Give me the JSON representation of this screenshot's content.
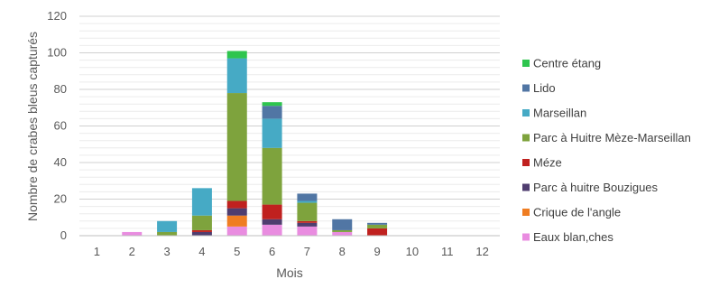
{
  "chart_data": {
    "type": "bar",
    "stacked": true,
    "xlabel": "Mois",
    "ylabel": "Nombre de crabes bleus capturés",
    "ylim": [
      0,
      120
    ],
    "y_ticks": [
      0,
      20,
      40,
      60,
      80,
      100,
      120
    ],
    "grid": true,
    "legend_position": "right",
    "categories": [
      "1",
      "2",
      "3",
      "4",
      "5",
      "6",
      "7",
      "8",
      "9",
      "10",
      "11",
      "12"
    ],
    "series": [
      {
        "name": "Eaux blan,ches",
        "color": "#e98ce0",
        "values": [
          0,
          2,
          0,
          0,
          5,
          6,
          5,
          2,
          0,
          0,
          0,
          0
        ]
      },
      {
        "name": "Crique de l'angle",
        "color": "#ef7d22",
        "values": [
          0,
          0,
          0,
          0,
          6,
          0,
          0,
          0,
          0,
          0,
          0,
          0
        ]
      },
      {
        "name": "Parc à huitre Bouzigues",
        "color": "#4f3d6f",
        "values": [
          0,
          0,
          0,
          2,
          4,
          3,
          2,
          0,
          0,
          0,
          0,
          0
        ]
      },
      {
        "name": "Méze",
        "color": "#c0211f",
        "values": [
          0,
          0,
          0,
          1,
          4,
          8,
          1,
          0,
          4,
          0,
          0,
          0
        ]
      },
      {
        "name": "Parc à Huitre Mèze-Marseillan",
        "color": "#7ea33d",
        "values": [
          0,
          0,
          2,
          8,
          59,
          31,
          10,
          1,
          2,
          0,
          0,
          0
        ]
      },
      {
        "name": "Marseillan",
        "color": "#46aac5",
        "values": [
          0,
          0,
          6,
          15,
          19,
          16,
          1,
          0,
          0,
          0,
          0,
          0
        ]
      },
      {
        "name": "Lido",
        "color": "#5176a4",
        "values": [
          0,
          0,
          0,
          0,
          0,
          7,
          4,
          6,
          1,
          0,
          0,
          0
        ]
      },
      {
        "name": "Centre étang",
        "color": "#2ec54e",
        "values": [
          0,
          0,
          0,
          0,
          4,
          2,
          0,
          0,
          0,
          0,
          0,
          0
        ]
      }
    ]
  }
}
